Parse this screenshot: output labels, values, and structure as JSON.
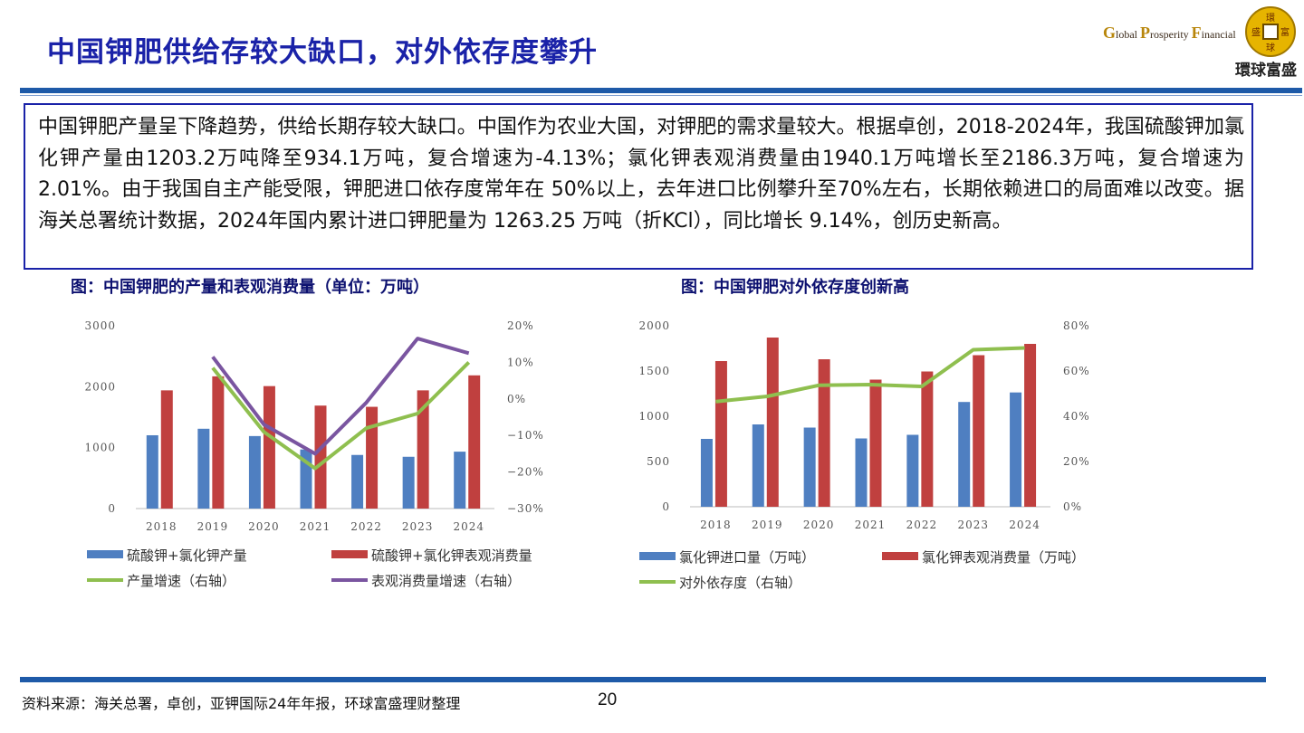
{
  "slide": {
    "title": "中国钾肥供给存较大缺口，对外依存度攀升",
    "body": "中国钾肥产量呈下降趋势，供给长期存较大缺口。中国作为农业大国，对钾肥的需求量较大。根据卓创，2018-2024年，我国硫酸钾加氯化钾产量由1203.2万吨降至934.1万吨，复合增速为-4.13%；氯化钾表观消费量由1940.1万吨增长至2186.3万吨，复合增速为2.01%。由于我国自主产能受限，钾肥进口依存度常年在 50%以上，去年进口比例攀升至70%左右，长期依赖进口的局面难以改变。据海关总署统计数据，2024年国内累计进口钾肥量为 1263.25 万吨（折KCl），同比增长 9.14%，创历史新高。",
    "source": "资料来源：海关总署，卓创，亚钾国际24年年报，环球富盛理财整理",
    "page_number": "20"
  },
  "logo": {
    "en_g": "G",
    "en_lobal": "lobal",
    "en_p": "P",
    "en_rosperity": "rosperity",
    "en_f": "F",
    "en_inancial": "inancial",
    "cn": "環球富盛",
    "seal": [
      "環",
      "富",
      "盛",
      "球"
    ]
  },
  "colors": {
    "blue": "#4f7fc1",
    "red": "#c0403f",
    "green": "#8fbf4f",
    "purple": "#7a55a0",
    "title": "#1a22a8"
  },
  "chart_data": [
    {
      "type": "bar",
      "caption": "图：中国钾肥的产量和表观消费量（单位：万吨）",
      "categories": [
        "2018",
        "2019",
        "2020",
        "2021",
        "2022",
        "2023",
        "2024"
      ],
      "ylim": [
        0,
        3000
      ],
      "yticks": [
        "0",
        "1000",
        "2000",
        "3000"
      ],
      "y2lim": [
        -30,
        20
      ],
      "y2ticks": [
        "−30%",
        "−20%",
        "−10%",
        "0%",
        "10%",
        "20%"
      ],
      "series": [
        {
          "name": "硫酸钾+氯化钾产量",
          "kind": "bar",
          "axis": "left",
          "values": [
            1203.2,
            1310,
            1190,
            970,
            880,
            850,
            934.1
          ]
        },
        {
          "name": "硫酸钾+氯化钾表观消费量",
          "kind": "bar",
          "axis": "left",
          "values": [
            1940.1,
            2170,
            2010,
            1690,
            1670,
            1940,
            2186.3
          ]
        },
        {
          "name": "产量增速（右轴）",
          "kind": "line",
          "axis": "right",
          "values": [
            null,
            8.5,
            -9,
            -19,
            -8,
            -4,
            10
          ]
        },
        {
          "name": "表观消费量增速（右轴）",
          "kind": "line",
          "axis": "right",
          "values": [
            null,
            11.5,
            -7,
            -15,
            -1,
            16.5,
            12.5
          ]
        }
      ]
    },
    {
      "type": "bar",
      "caption": "图：中国钾肥对外依存度创新高",
      "categories": [
        "2018",
        "2019",
        "2020",
        "2021",
        "2022",
        "2023",
        "2024"
      ],
      "ylim": [
        0,
        2000
      ],
      "yticks": [
        "0",
        "500",
        "1000",
        "1500",
        "2000"
      ],
      "y2lim": [
        0,
        80
      ],
      "y2ticks": [
        "0%",
        "20%",
        "40%",
        "60%",
        "80%"
      ],
      "series": [
        {
          "name": "氯化钾进口量（万吨）",
          "kind": "bar",
          "axis": "left",
          "values": [
            750,
            910,
            875,
            755,
            795,
            1158,
            1263.25
          ]
        },
        {
          "name": "氯化钾表观消费量（万吨）",
          "kind": "bar",
          "axis": "left",
          "values": [
            1610,
            1870,
            1630,
            1405,
            1495,
            1675,
            1800
          ]
        },
        {
          "name": "对外依存度（右轴）",
          "kind": "line",
          "axis": "right",
          "values": [
            46.5,
            48.8,
            53.7,
            54,
            53.2,
            69.4,
            70.2
          ]
        }
      ]
    }
  ]
}
